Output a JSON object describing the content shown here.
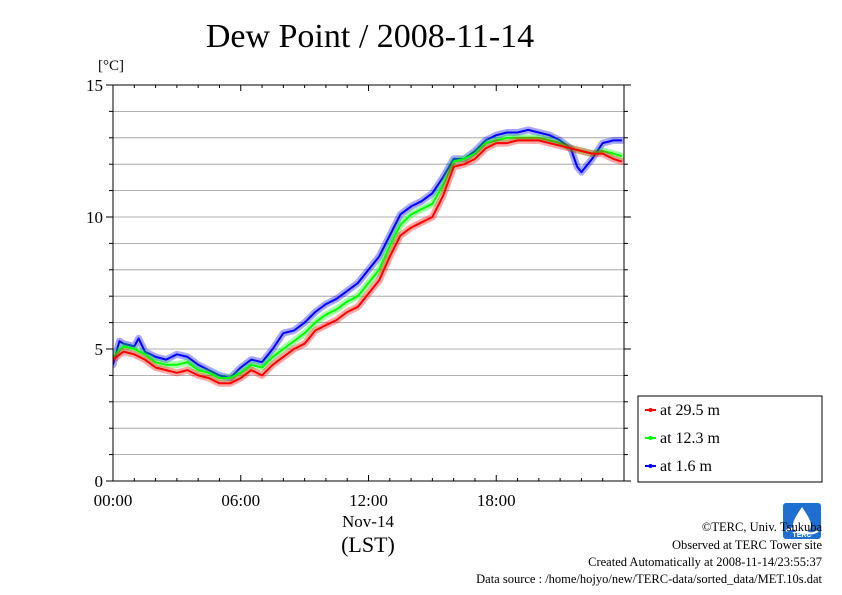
{
  "chart_data": {
    "type": "line",
    "title": "Dew Point / 2008-11-14",
    "ylabel": "[°C]",
    "ylim": [
      0,
      15
    ],
    "yticks": [
      0,
      5,
      10,
      15
    ],
    "xlim_hours": [
      0,
      24
    ],
    "xticks": [
      {
        "hour": 0,
        "label": "00:00"
      },
      {
        "hour": 6,
        "label": "06:00"
      },
      {
        "hour": 12,
        "label": "12:00"
      },
      {
        "hour": 18,
        "label": "18:00"
      }
    ],
    "x_sublabel": "Nov-14",
    "x_unit": "(LST)",
    "grid": "horizontal",
    "legend_position": "bottom-right outside",
    "series": [
      {
        "name": "at 29.5 m",
        "color": "#ff0000",
        "x": [
          0,
          0.5,
          1,
          1.5,
          2,
          2.5,
          3,
          3.5,
          4,
          4.5,
          5,
          5.5,
          6,
          6.5,
          7,
          7.5,
          8,
          8.5,
          9,
          9.5,
          10,
          10.5,
          11,
          11.5,
          12,
          12.5,
          13,
          13.5,
          14,
          14.5,
          15,
          15.5,
          16,
          16.5,
          17,
          17.5,
          18,
          18.5,
          19,
          19.5,
          20,
          20.5,
          21,
          21.5,
          22,
          22.5,
          23,
          23.5,
          23.9
        ],
        "values": [
          4.6,
          4.9,
          4.8,
          4.6,
          4.3,
          4.2,
          4.1,
          4.2,
          4.0,
          3.9,
          3.7,
          3.7,
          3.9,
          4.2,
          4.0,
          4.4,
          4.7,
          5.0,
          5.2,
          5.7,
          5.9,
          6.1,
          6.4,
          6.6,
          7.1,
          7.6,
          8.5,
          9.3,
          9.6,
          9.8,
          10.0,
          10.8,
          11.9,
          12.0,
          12.2,
          12.6,
          12.8,
          12.8,
          12.9,
          12.9,
          12.9,
          12.8,
          12.7,
          12.6,
          12.5,
          12.4,
          12.4,
          12.2,
          12.1
        ]
      },
      {
        "name": "at 12.3 m",
        "color": "#00ff00",
        "x": [
          0,
          0.5,
          1,
          1.5,
          2,
          2.5,
          3,
          3.5,
          4,
          4.5,
          5,
          5.5,
          6,
          6.5,
          7,
          7.5,
          8,
          8.5,
          9,
          9.5,
          10,
          10.5,
          11,
          11.5,
          12,
          12.5,
          13,
          13.5,
          14,
          14.5,
          15,
          15.5,
          16,
          16.5,
          17,
          17.5,
          18,
          18.5,
          19,
          19.5,
          20,
          20.5,
          21,
          21.5,
          22,
          22.5,
          23,
          23.5,
          23.9
        ],
        "values": [
          4.7,
          5.1,
          5.0,
          4.8,
          4.5,
          4.4,
          4.4,
          4.5,
          4.2,
          4.1,
          3.9,
          3.9,
          4.1,
          4.4,
          4.3,
          4.7,
          5.0,
          5.3,
          5.6,
          6.0,
          6.3,
          6.5,
          6.8,
          7.0,
          7.5,
          8.0,
          8.9,
          9.7,
          10.1,
          10.3,
          10.5,
          11.2,
          12.1,
          12.2,
          12.4,
          12.8,
          12.9,
          13.0,
          13.0,
          13.0,
          13.0,
          12.9,
          12.8,
          12.6,
          12.5,
          12.4,
          12.5,
          12.4,
          12.3
        ]
      },
      {
        "name": "at 1.6 m",
        "color": "#0000ff",
        "x": [
          0,
          0.3,
          0.5,
          1,
          1.2,
          1.5,
          2,
          2.5,
          3,
          3.5,
          4,
          4.5,
          5,
          5.5,
          6,
          6.5,
          7,
          7.5,
          8,
          8.5,
          9,
          9.5,
          10,
          10.5,
          11,
          11.5,
          12,
          12.5,
          13,
          13.5,
          14,
          14.5,
          15,
          15.5,
          16,
          16.5,
          17,
          17.5,
          18,
          18.5,
          19,
          19.5,
          20,
          20.5,
          21,
          21.5,
          21.8,
          22,
          22.5,
          23,
          23.5,
          23.9
        ],
        "values": [
          4.4,
          5.3,
          5.2,
          5.1,
          5.4,
          4.9,
          4.7,
          4.6,
          4.8,
          4.7,
          4.4,
          4.2,
          4.0,
          3.9,
          4.3,
          4.6,
          4.5,
          5.0,
          5.6,
          5.7,
          6.0,
          6.4,
          6.7,
          6.9,
          7.2,
          7.5,
          8.0,
          8.5,
          9.3,
          10.1,
          10.4,
          10.6,
          10.9,
          11.5,
          12.2,
          12.2,
          12.5,
          12.9,
          13.1,
          13.2,
          13.2,
          13.3,
          13.2,
          13.1,
          12.9,
          12.6,
          11.9,
          11.7,
          12.2,
          12.8,
          12.9,
          12.9
        ]
      }
    ]
  },
  "footer": {
    "copyright": "©TERC, Univ. Tsukuba",
    "site": "Observed at TERC Tower site",
    "created": "Created Automatically at 2008-11-14/23:55:37",
    "source": "Data source : /home/hojyo/new/TERC-data/sorted_data/MET.10s.dat"
  },
  "logo": {
    "text": "TERC",
    "color": "#1f6fd0"
  }
}
